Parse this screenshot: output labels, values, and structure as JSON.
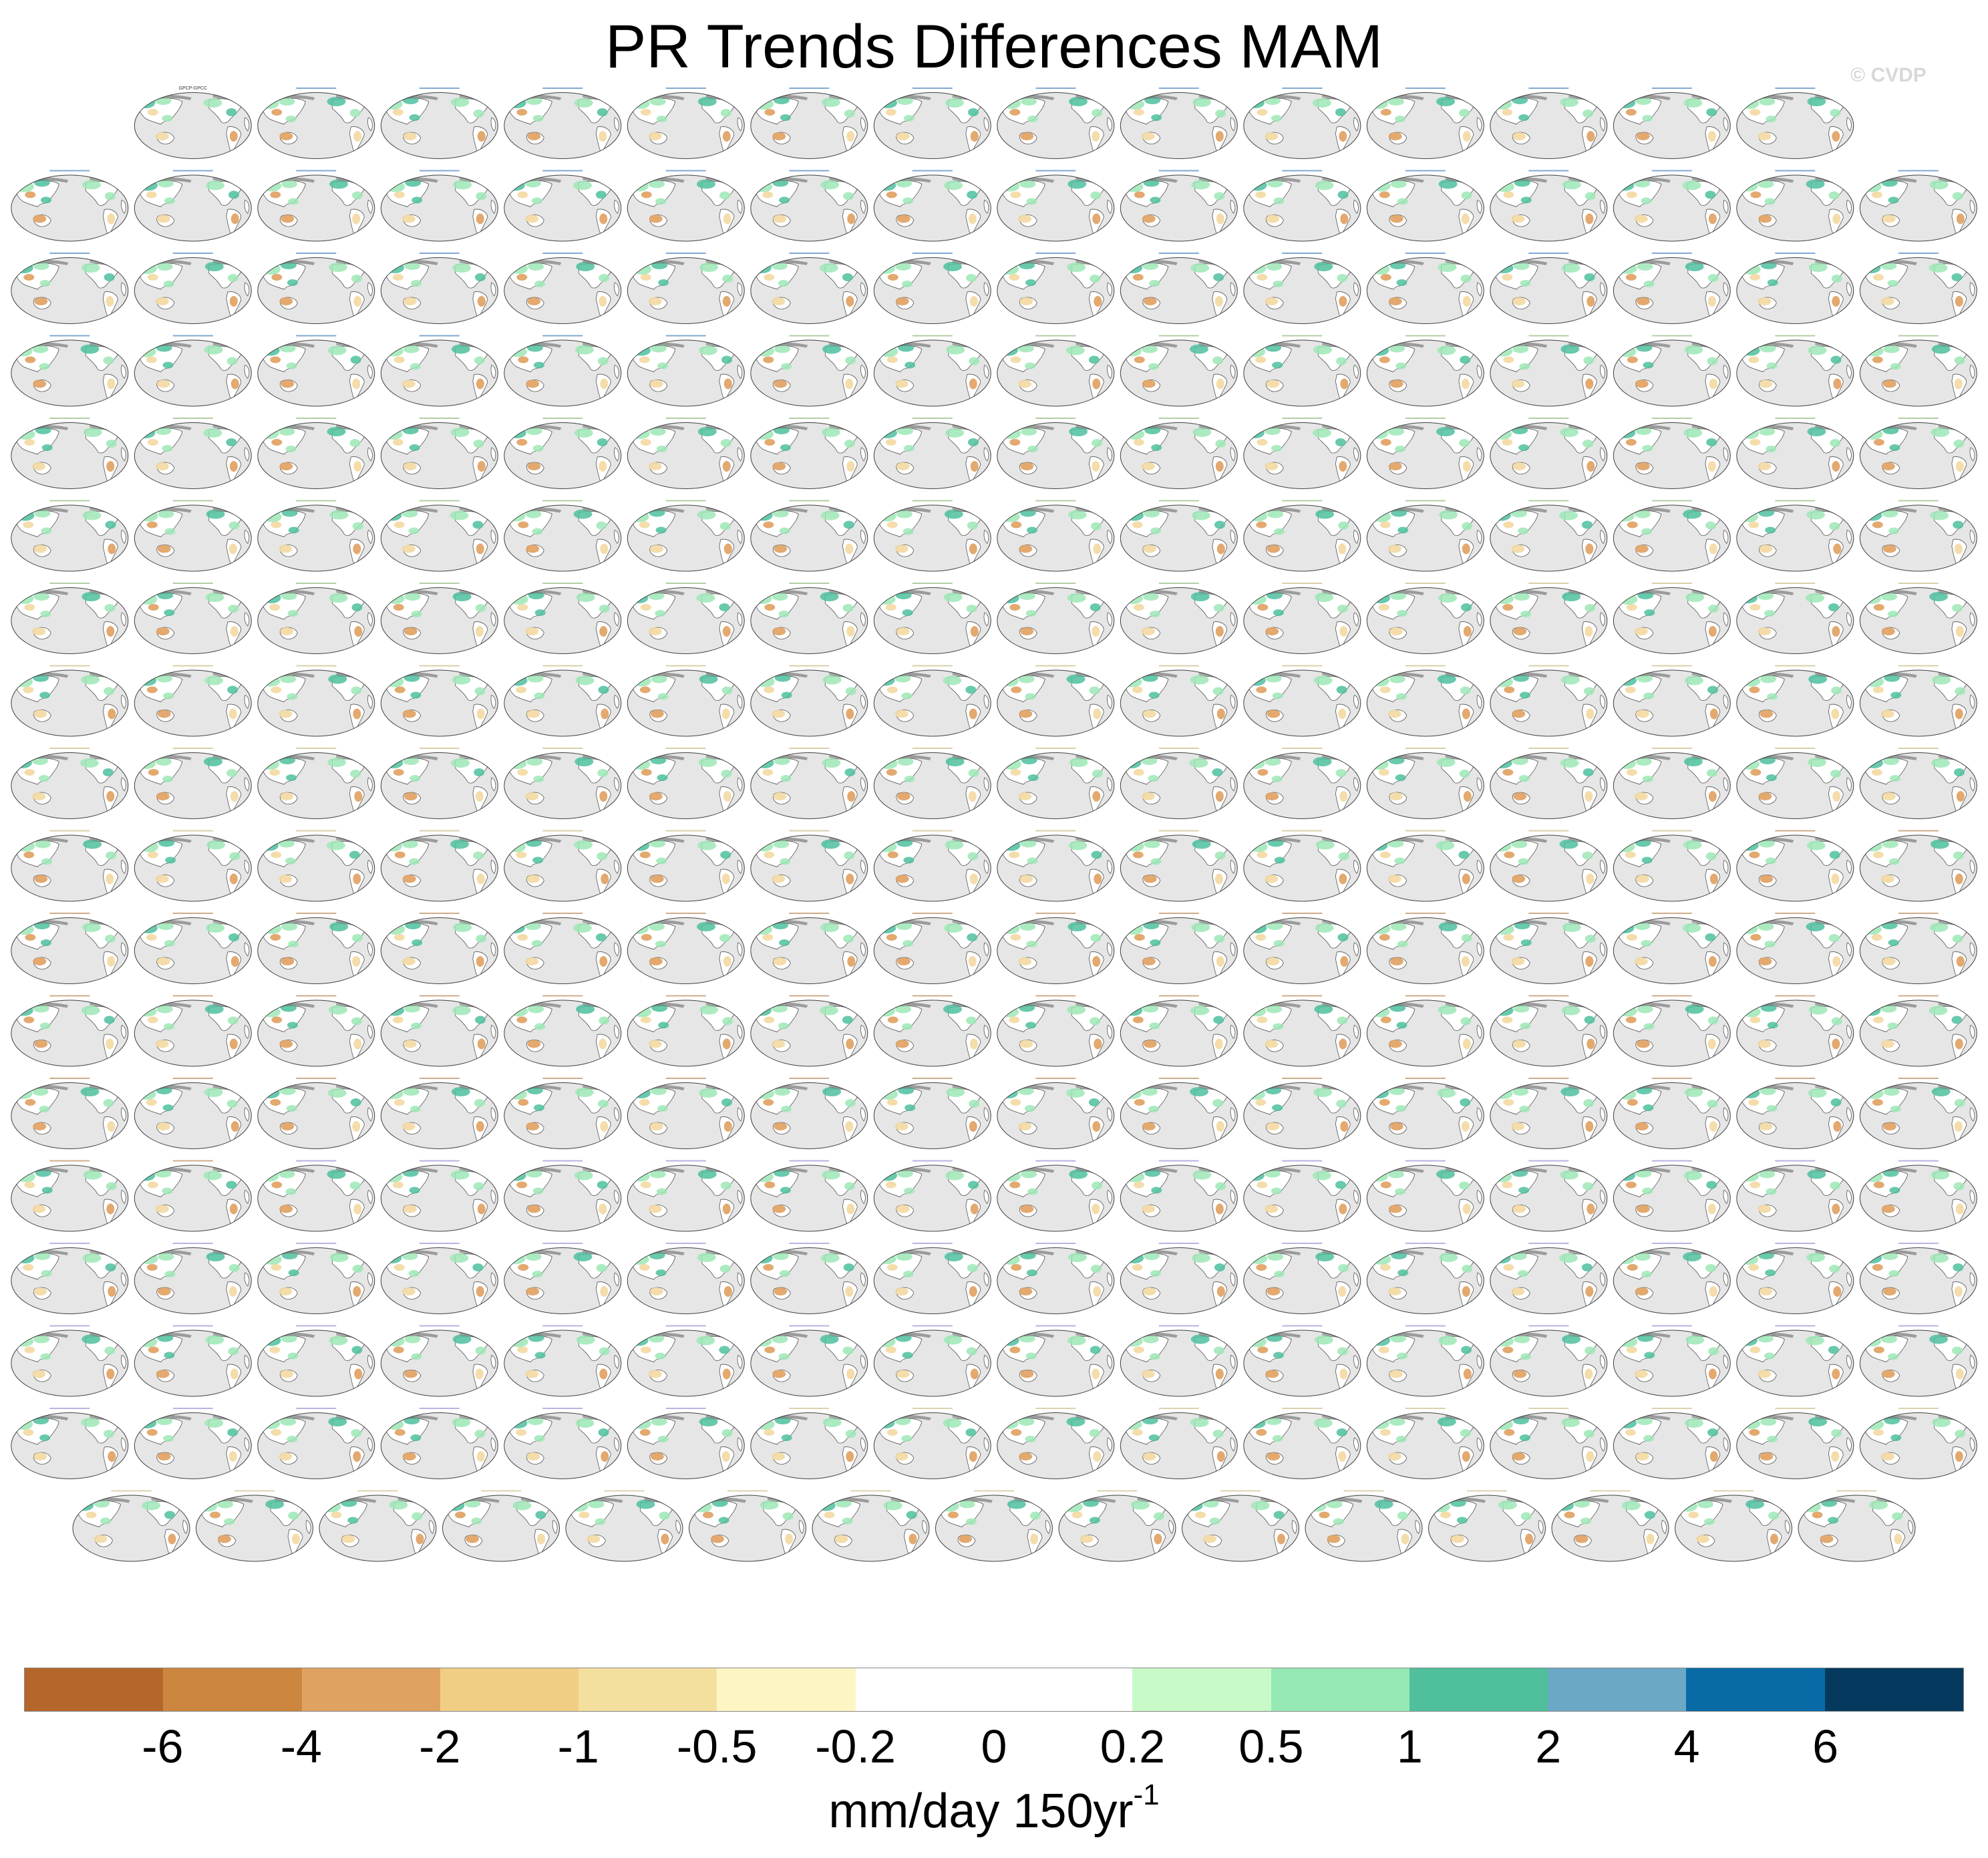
{
  "title": "PR Trends Differences MAM",
  "watermark": "© CVDP",
  "panels": {
    "rows": [
      14,
      16,
      16,
      16,
      16,
      16,
      16,
      16,
      16,
      16,
      16,
      16,
      16,
      16,
      16,
      16,
      16,
      15
    ],
    "first_label": "GPCP-GPCC",
    "map_colors": {
      "ocean": "#e6e6e6",
      "land_neutral": "#ffffff",
      "land_dry": "#f3d9a2",
      "land_drier": "#e0a05f",
      "land_wet": "#9de8b6",
      "land_wetter": "#4ebf9f",
      "coast": "#555555",
      "ice": "#7a7a7a"
    },
    "label_colors": [
      "#2f6fb8",
      "#7fae6b",
      "#c2b070",
      "#b0763a",
      "#8e7fd0",
      "#c9b37a"
    ]
  },
  "colorbar": {
    "colors": [
      "#b5662a",
      "#cc8640",
      "#dfa262",
      "#f2cd86",
      "#f4e09e",
      "#fdf5c4",
      "#ffffff",
      "#ffffff",
      "#c8fac8",
      "#96e9b4",
      "#4fbf9c",
      "#6aa8c6",
      "#0a6aa6",
      "#053a5e"
    ],
    "tick_labels": [
      "-6",
      "-4",
      "-2",
      "-1",
      "-0.5",
      "-0.2",
      "0",
      "0.2",
      "0.5",
      "1",
      "2",
      "4",
      "6"
    ]
  },
  "units": {
    "text": "mm/day 150yr",
    "superscript": "-1"
  }
}
